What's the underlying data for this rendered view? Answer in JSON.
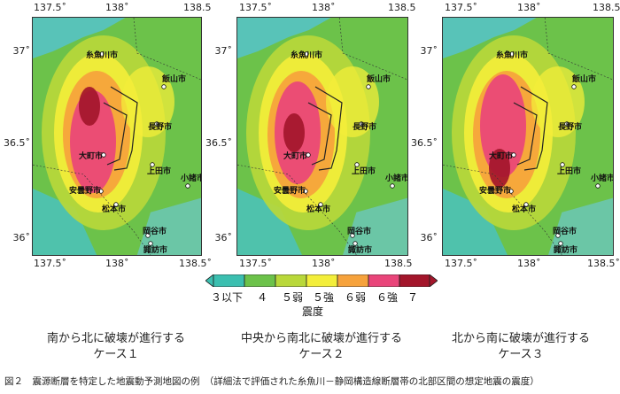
{
  "axes": {
    "x_ticks": [
      "137.5˚",
      "138˚",
      "138.5"
    ],
    "x_ticks_last_full": "138.5˚",
    "y_ticks": [
      "37˚",
      "36.5˚",
      "36˚"
    ]
  },
  "maps": [
    {
      "case_line1": "南から北に破壊が進行する",
      "case_line2": "ケース１"
    },
    {
      "case_line1": "中央から南北に破壊が進行する",
      "case_line2": "ケース２"
    },
    {
      "case_line1": "北から南に破壊が進行する",
      "case_line2": "ケース３"
    }
  ],
  "cities": [
    "糸魚川市",
    "飯山市",
    "長野市",
    "大町市",
    "上田市",
    "小諸市",
    "安曇野市",
    "松本市",
    "岡谷市",
    "諏訪市"
  ],
  "legend": {
    "title": "震度",
    "labels": [
      "３以下",
      "４",
      "５弱",
      "５強",
      "６弱",
      "６強",
      "７"
    ],
    "colors": [
      "#3bbfb0",
      "#6cc24a",
      "#b9d83a",
      "#f3ee3a",
      "#f6a23c",
      "#e9457a",
      "#a3162b"
    ]
  },
  "caption": "図２　震源断層を特定した地震動予測地図の例　（詳細法で評価された糸魚川－静岡構造線断層帯の北部区間の想定地震の震度）"
}
